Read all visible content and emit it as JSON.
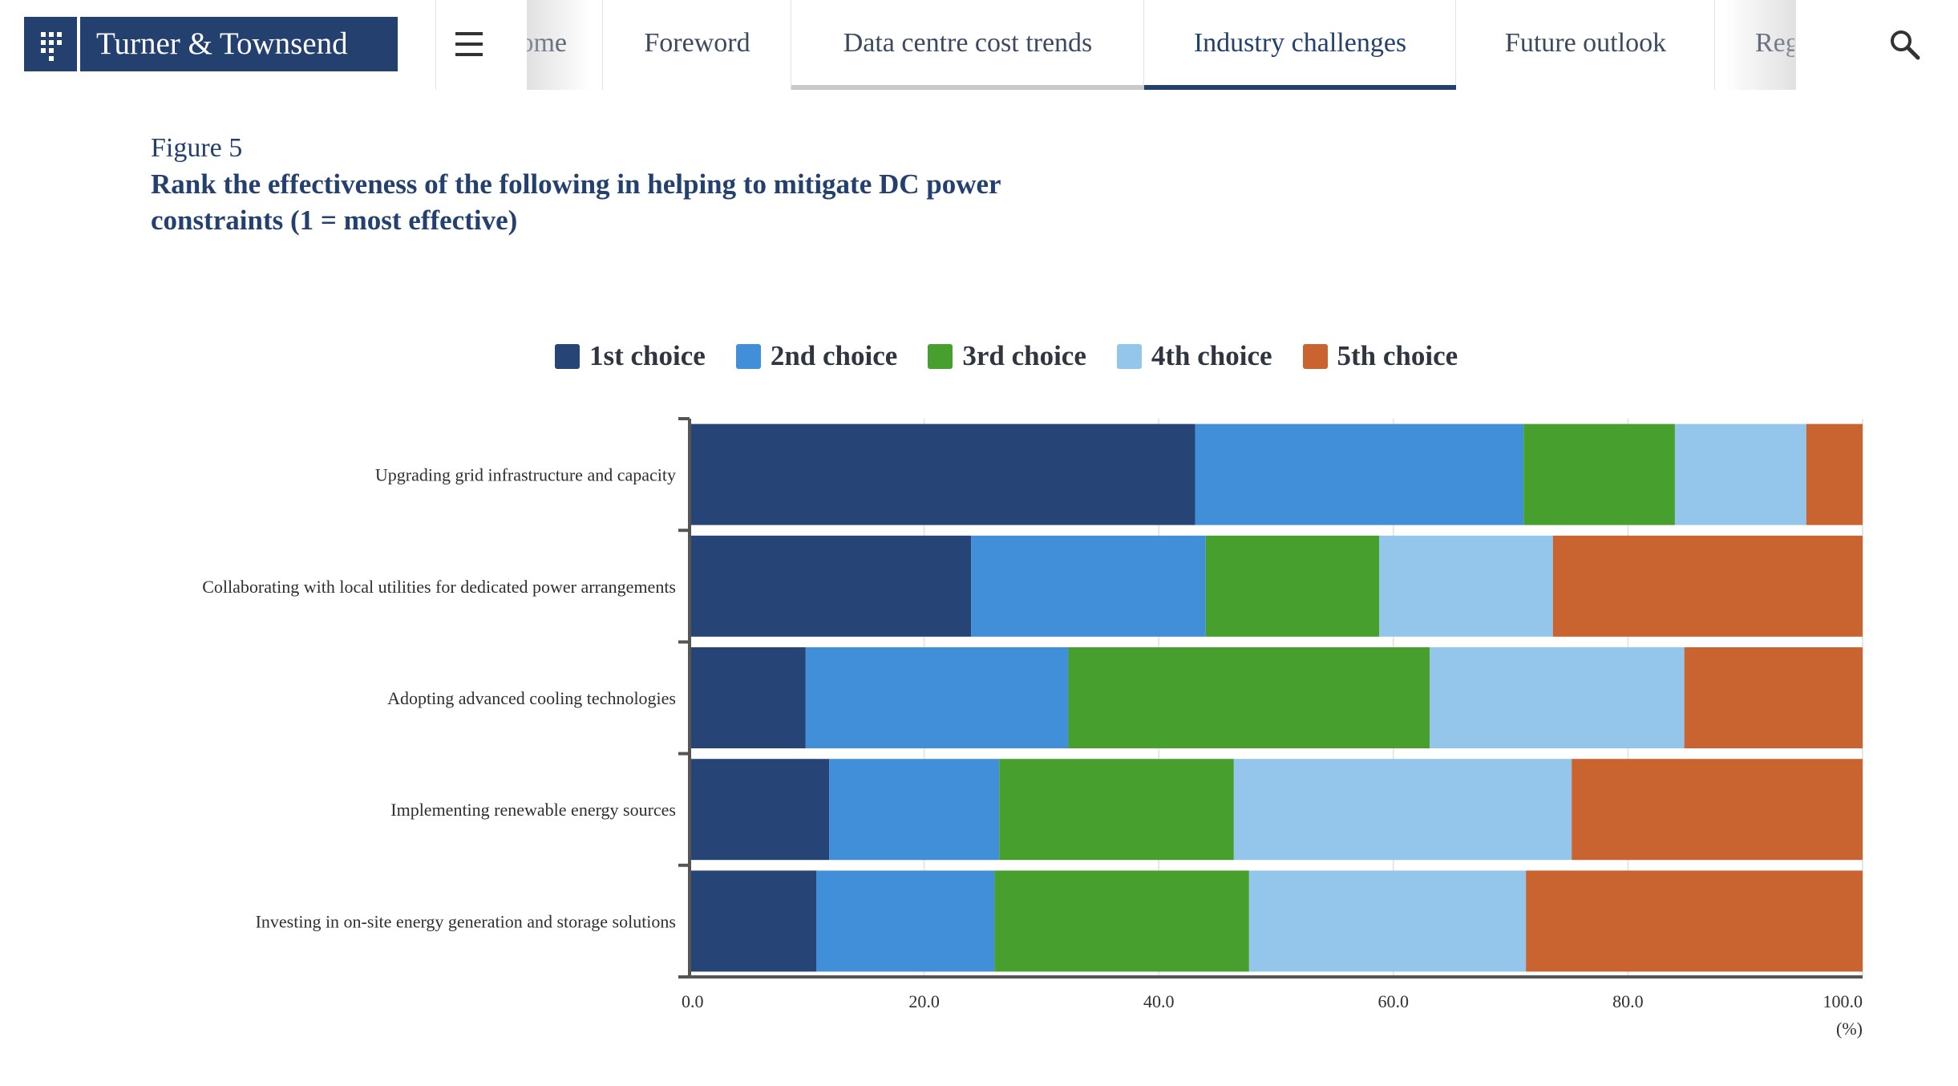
{
  "header": {
    "logo_text": "Turner & Townsend",
    "nav_items": [
      {
        "label": "Home"
      },
      {
        "label": "Foreword"
      },
      {
        "label": "Data centre cost trends"
      },
      {
        "label": "Industry challenges"
      },
      {
        "label": "Future outlook"
      },
      {
        "label": "Regional insights"
      }
    ],
    "active_item": "Industry challenges"
  },
  "figure": {
    "label": "Figure 5",
    "title": "Rank the effectiveness of the following in helping to mitigate DC power constraints (1 = most effective)"
  },
  "chart_data": {
    "type": "bar",
    "orientation": "horizontal",
    "stacked": true,
    "categories": [
      "Upgrading grid infrastructure and capacity",
      "Collaborating with local utilities for dedicated power arrangements",
      "Adopting advanced cooling technologies",
      "Implementing renewable energy sources",
      "Investing in on-site energy generation and storage solutions"
    ],
    "series": [
      {
        "name": "1st choice",
        "color": "#264476",
        "values": [
          43.1,
          24.0,
          9.9,
          11.9,
          10.8
        ]
      },
      {
        "name": "2nd choice",
        "color": "#418fd8",
        "values": [
          28.0,
          20.0,
          22.4,
          14.5,
          15.2
        ]
      },
      {
        "name": "3rd choice",
        "color": "#47a02e",
        "values": [
          12.9,
          14.8,
          30.8,
          20.0,
          21.7
        ]
      },
      {
        "name": "4th choice",
        "color": "#93c6ea",
        "values": [
          11.2,
          14.8,
          21.7,
          28.8,
          23.6
        ]
      },
      {
        "name": "5th choice",
        "color": "#c96330",
        "values": [
          4.8,
          26.4,
          15.2,
          24.8,
          28.7
        ]
      }
    ],
    "xlim": [
      0,
      100
    ],
    "xticks": [
      "0.0",
      "20.0",
      "40.0",
      "60.0",
      "80.0",
      "100.0"
    ],
    "xunit": "(%)",
    "grid": true,
    "legend_position": "top"
  }
}
